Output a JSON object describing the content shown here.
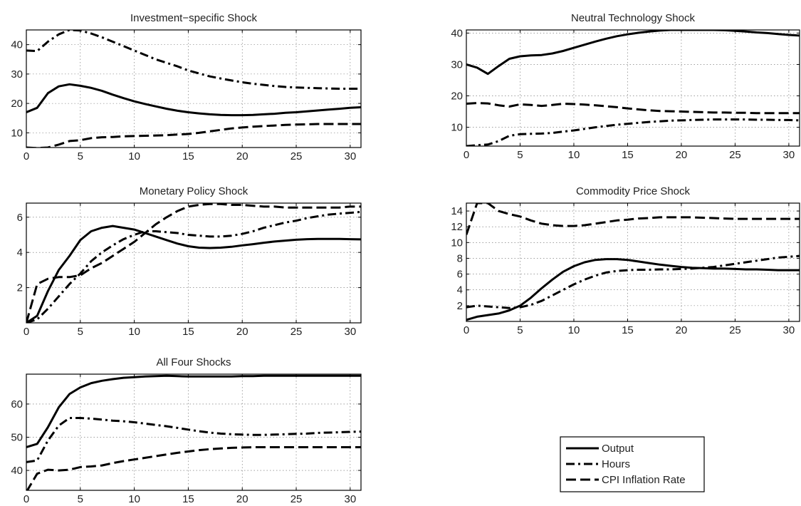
{
  "legend": {
    "entries": [
      {
        "label": "Output",
        "style": "solid"
      },
      {
        "label": "Hours",
        "style": "dashdot"
      },
      {
        "label": "CPI Inflation Rate",
        "style": "dashed"
      }
    ]
  },
  "chart_data": [
    {
      "type": "line",
      "title": "Investment−specific Shock",
      "xlabel": "",
      "ylabel": "",
      "xlim": [
        0,
        31
      ],
      "ylim": [
        5,
        45
      ],
      "xticks": [
        0,
        5,
        10,
        15,
        20,
        25,
        30
      ],
      "yticks": [
        10,
        20,
        30,
        40
      ],
      "grid": true,
      "x": [
        0,
        1,
        2,
        3,
        4,
        5,
        6,
        7,
        8,
        9,
        10,
        11,
        12,
        13,
        14,
        15,
        16,
        17,
        18,
        19,
        20,
        21,
        22,
        23,
        24,
        25,
        26,
        27,
        28,
        29,
        30,
        31
      ],
      "series": [
        {
          "name": "Output",
          "style": "solid",
          "values": [
            17,
            18.5,
            23.5,
            25.8,
            26.5,
            26,
            25.3,
            24.3,
            23,
            21.8,
            20.7,
            19.8,
            19,
            18.2,
            17.5,
            17,
            16.6,
            16.3,
            16.1,
            16,
            16,
            16.1,
            16.3,
            16.5,
            16.8,
            17,
            17.3,
            17.6,
            17.9,
            18.2,
            18.5,
            18.7
          ]
        },
        {
          "name": "Hours",
          "style": "dashdot",
          "values": [
            38,
            37.8,
            41,
            43.5,
            45,
            44.8,
            43.8,
            42.5,
            41,
            39.5,
            38,
            36.5,
            35,
            33.8,
            32.6,
            31.2,
            30.2,
            29.2,
            28.5,
            27.8,
            27.2,
            26.7,
            26.3,
            25.9,
            25.6,
            25.4,
            25.3,
            25.2,
            25.1,
            25,
            25,
            25
          ]
        },
        {
          "name": "CPI Inflation Rate",
          "style": "dashed",
          "values": [
            5,
            4.8,
            5,
            6,
            7.2,
            7.5,
            8.2,
            8.5,
            8.6,
            8.8,
            8.9,
            9,
            9.1,
            9.2,
            9.4,
            9.6,
            10,
            10.5,
            11,
            11.5,
            11.8,
            12.1,
            12.3,
            12.5,
            12.7,
            12.8,
            12.9,
            13,
            13,
            13,
            13,
            13
          ]
        }
      ]
    },
    {
      "type": "line",
      "title": "Neutral Technology Shock",
      "xlabel": "",
      "ylabel": "",
      "xlim": [
        0,
        31
      ],
      "ylim": [
        4,
        41
      ],
      "xticks": [
        0,
        5,
        10,
        15,
        20,
        25,
        30
      ],
      "yticks": [
        10,
        20,
        30,
        40
      ],
      "grid": true,
      "x": [
        0,
        1,
        2,
        3,
        4,
        5,
        6,
        7,
        8,
        9,
        10,
        11,
        12,
        13,
        14,
        15,
        16,
        17,
        18,
        19,
        20,
        21,
        22,
        23,
        24,
        25,
        26,
        27,
        28,
        29,
        30,
        31
      ],
      "series": [
        {
          "name": "Output",
          "style": "solid",
          "values": [
            30,
            29,
            27,
            29.5,
            31.8,
            32.6,
            32.9,
            33,
            33.5,
            34.3,
            35.3,
            36.3,
            37.3,
            38.2,
            39,
            39.6,
            40.1,
            40.5,
            40.8,
            41,
            41,
            41,
            41,
            41,
            40.9,
            40.7,
            40.5,
            40.2,
            40,
            39.7,
            39.4,
            39.2
          ]
        },
        {
          "name": "Hours",
          "style": "dashdot",
          "values": [
            4,
            4.3,
            4.5,
            5.6,
            7.3,
            7.8,
            7.9,
            8,
            8.2,
            8.6,
            9,
            9.5,
            10,
            10.4,
            10.8,
            11.1,
            11.4,
            11.7,
            11.9,
            12.1,
            12.2,
            12.3,
            12.4,
            12.5,
            12.5,
            12.5,
            12.5,
            12.4,
            12.4,
            12.3,
            12.3,
            12.2
          ]
        },
        {
          "name": "CPI Inflation Rate",
          "style": "dashed",
          "values": [
            17.5,
            17.7,
            17.6,
            17,
            16.6,
            17.3,
            17.1,
            16.8,
            17.1,
            17.5,
            17.4,
            17.2,
            17,
            16.7,
            16.4,
            16,
            15.7,
            15.4,
            15.2,
            15.1,
            15,
            14.9,
            14.8,
            14.7,
            14.7,
            14.6,
            14.6,
            14.5,
            14.5,
            14.5,
            14.5,
            14.5
          ]
        }
      ]
    },
    {
      "type": "line",
      "title": "Monetary Policy Shock",
      "xlabel": "",
      "ylabel": "",
      "xlim": [
        0,
        31
      ],
      "ylim": [
        0,
        6.8
      ],
      "xticks": [
        0,
        5,
        10,
        15,
        20,
        25,
        30
      ],
      "yticks": [
        2,
        4,
        6
      ],
      "grid": true,
      "x": [
        0,
        1,
        2,
        3,
        4,
        5,
        6,
        7,
        8,
        9,
        10,
        11,
        12,
        13,
        14,
        15,
        16,
        17,
        18,
        19,
        20,
        21,
        22,
        23,
        24,
        25,
        26,
        27,
        28,
        29,
        30,
        31
      ],
      "series": [
        {
          "name": "Output",
          "style": "solid",
          "values": [
            0,
            0.4,
            1.8,
            3,
            3.8,
            4.7,
            5.2,
            5.4,
            5.5,
            5.4,
            5.3,
            5.1,
            4.9,
            4.7,
            4.5,
            4.35,
            4.27,
            4.25,
            4.27,
            4.32,
            4.4,
            4.47,
            4.55,
            4.62,
            4.67,
            4.72,
            4.75,
            4.77,
            4.77,
            4.77,
            4.75,
            4.74
          ]
        },
        {
          "name": "Hours",
          "style": "dashdot",
          "values": [
            0,
            0.2,
            0.8,
            1.5,
            2.2,
            2.8,
            3.5,
            4,
            4.4,
            4.75,
            5,
            5.2,
            5.2,
            5.15,
            5.1,
            5,
            4.95,
            4.9,
            4.9,
            4.95,
            5.05,
            5.2,
            5.4,
            5.55,
            5.7,
            5.8,
            5.95,
            6.05,
            6.15,
            6.2,
            6.25,
            6.3
          ]
        },
        {
          "name": "CPI Inflation Rate",
          "style": "dashed",
          "values": [
            0,
            2.2,
            2.5,
            2.6,
            2.6,
            2.7,
            3.1,
            3.4,
            3.8,
            4.2,
            4.6,
            5.1,
            5.6,
            6,
            6.35,
            6.6,
            6.7,
            6.75,
            6.75,
            6.7,
            6.7,
            6.65,
            6.6,
            6.6,
            6.55,
            6.55,
            6.55,
            6.55,
            6.55,
            6.55,
            6.6,
            6.6
          ]
        }
      ]
    },
    {
      "type": "line",
      "title": "Commodity Price Shock",
      "xlabel": "",
      "ylabel": "",
      "xlim": [
        0,
        31
      ],
      "ylim": [
        0,
        15
      ],
      "xticks": [
        0,
        5,
        10,
        15,
        20,
        25,
        30
      ],
      "yticks": [
        2,
        4,
        6,
        8,
        10,
        12,
        14
      ],
      "grid": true,
      "x": [
        0,
        1,
        2,
        3,
        4,
        5,
        6,
        7,
        8,
        9,
        10,
        11,
        12,
        13,
        14,
        15,
        16,
        17,
        18,
        19,
        20,
        21,
        22,
        23,
        24,
        25,
        26,
        27,
        28,
        29,
        30,
        31
      ],
      "series": [
        {
          "name": "Output",
          "style": "solid",
          "values": [
            0.2,
            0.6,
            0.8,
            1,
            1.4,
            2,
            3,
            4.2,
            5.3,
            6.3,
            7,
            7.5,
            7.8,
            7.9,
            7.9,
            7.8,
            7.6,
            7.4,
            7.2,
            7.05,
            6.9,
            6.8,
            6.75,
            6.7,
            6.7,
            6.65,
            6.6,
            6.6,
            6.55,
            6.5,
            6.5,
            6.5
          ]
        },
        {
          "name": "Hours",
          "style": "dashdot",
          "values": [
            1.8,
            2,
            1.9,
            1.8,
            1.7,
            1.8,
            2.1,
            2.6,
            3.3,
            4,
            4.7,
            5.3,
            5.8,
            6.2,
            6.4,
            6.5,
            6.55,
            6.55,
            6.6,
            6.6,
            6.65,
            6.7,
            6.8,
            6.9,
            7.1,
            7.3,
            7.5,
            7.7,
            7.9,
            8.1,
            8.2,
            8.3
          ]
        },
        {
          "name": "CPI Inflation Rate",
          "style": "dashed",
          "values": [
            11,
            15,
            15,
            14,
            13.6,
            13.3,
            12.8,
            12.4,
            12.2,
            12.1,
            12.1,
            12.2,
            12.4,
            12.6,
            12.8,
            12.9,
            13.05,
            13.1,
            13.2,
            13.2,
            13.2,
            13.2,
            13.15,
            13.1,
            13.05,
            13,
            13,
            13,
            13,
            13,
            13,
            13
          ]
        }
      ]
    },
    {
      "type": "line",
      "title": "All Four Shocks",
      "xlabel": "",
      "ylabel": "",
      "xlim": [
        0,
        31
      ],
      "ylim": [
        34,
        69
      ],
      "xticks": [
        0,
        5,
        10,
        15,
        20,
        25,
        30
      ],
      "yticks": [
        40,
        50,
        60
      ],
      "grid": true,
      "x": [
        0,
        1,
        2,
        3,
        4,
        5,
        6,
        7,
        8,
        9,
        10,
        11,
        12,
        13,
        14,
        15,
        16,
        17,
        18,
        19,
        20,
        21,
        22,
        23,
        24,
        25,
        26,
        27,
        28,
        29,
        30,
        31
      ],
      "series": [
        {
          "name": "Output",
          "style": "solid",
          "values": [
            47,
            48,
            53,
            59,
            63,
            65,
            66.3,
            67,
            67.5,
            67.9,
            68.1,
            68.3,
            68.4,
            68.5,
            68.4,
            68.3,
            68.3,
            68.3,
            68.3,
            68.3,
            68.4,
            68.4,
            68.5,
            68.5,
            68.5,
            68.5,
            68.5,
            68.5,
            68.5,
            68.5,
            68.5,
            68.5
          ]
        },
        {
          "name": "Hours",
          "style": "dashdot",
          "values": [
            42.5,
            43,
            49,
            53.5,
            55.8,
            55.8,
            55.6,
            55.3,
            55,
            54.8,
            54.5,
            54.1,
            53.7,
            53.3,
            52.8,
            52.3,
            51.8,
            51.4,
            51.1,
            50.9,
            50.8,
            50.7,
            50.7,
            50.8,
            50.9,
            51,
            51.1,
            51.3,
            51.4,
            51.5,
            51.6,
            51.7
          ]
        },
        {
          "name": "CPI Inflation Rate",
          "style": "dashed",
          "values": [
            33.5,
            39,
            40.2,
            40,
            40.2,
            41,
            41.2,
            41.5,
            42.2,
            42.8,
            43.3,
            43.8,
            44.3,
            44.8,
            45.3,
            45.7,
            46.1,
            46.4,
            46.6,
            46.8,
            46.9,
            47,
            47,
            47,
            47,
            47,
            47,
            47,
            47,
            47,
            47,
            47
          ]
        }
      ]
    }
  ]
}
